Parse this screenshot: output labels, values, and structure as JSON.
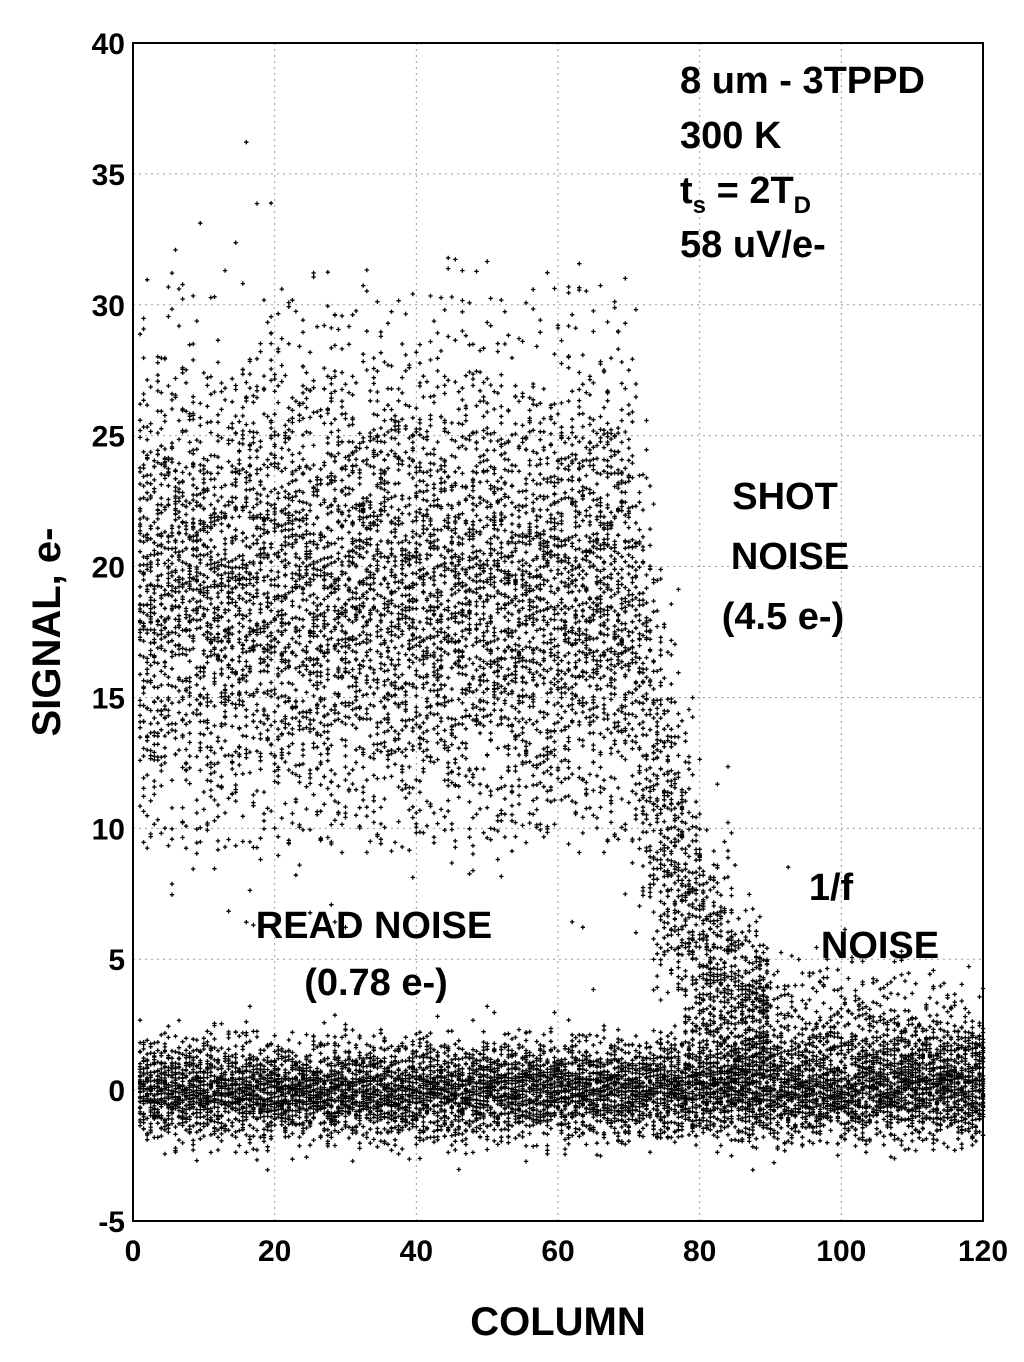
{
  "chart_data": {
    "type": "scatter",
    "xlabel": "COLUMN",
    "ylabel": "SIGNAL, e-",
    "xlim": [
      0,
      120
    ],
    "ylim": [
      -5,
      40
    ],
    "xticks": [
      0,
      20,
      40,
      60,
      80,
      100,
      120
    ],
    "yticks": [
      -5,
      0,
      5,
      10,
      15,
      20,
      25,
      30,
      35,
      40
    ],
    "grid": true,
    "marker": "+",
    "marker_color": "#000000",
    "annotations": [
      {
        "id": "pixel-info-1",
        "lines": [
          "8 um - 3TPPD"
        ]
      },
      {
        "id": "pixel-info-2",
        "lines": [
          "300 K"
        ]
      },
      {
        "id": "pixel-info-3",
        "lines": [
          "t",
          "s",
          " = 2T",
          "D"
        ]
      },
      {
        "id": "pixel-info-4",
        "lines": [
          "58 uV/e-"
        ]
      },
      {
        "id": "shot-noise",
        "lines": [
          "SHOT",
          "NOISE",
          "(4.5 e-)"
        ]
      },
      {
        "id": "read-noise",
        "lines": [
          "READ NOISE",
          "(0.78 e-)"
        ]
      },
      {
        "id": "flicker-noise",
        "lines": [
          "1/f",
          "NOISE"
        ]
      }
    ],
    "series": [
      {
        "columns": [
          1,
          70
        ],
        "baseline_mean": 0,
        "baseline_sigma": 0.78,
        "signal_mean": 19,
        "signal_sigma": 4.5
      },
      {
        "columns": [
          70,
          90
        ],
        "transition_signal_mean": [
          19,
          5
        ],
        "transition_sigma": [
          4.5,
          1.5
        ]
      },
      {
        "columns": [
          90,
          120
        ],
        "baseline_mean": 0,
        "baseline_sigma": 0.78,
        "tail_level": [
          5,
          1
        ]
      }
    ]
  }
}
